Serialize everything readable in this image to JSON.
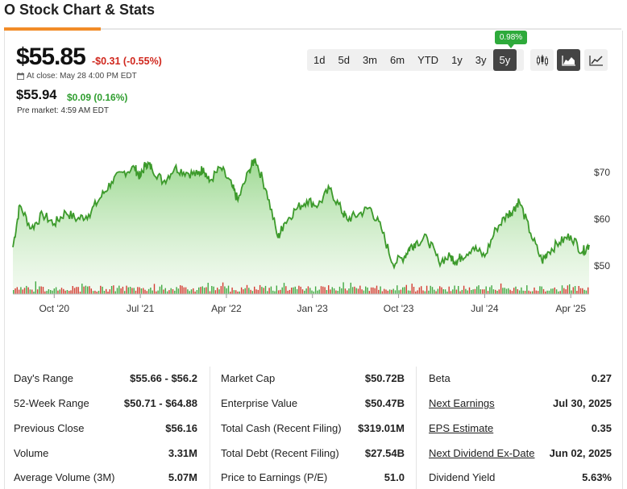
{
  "header": {
    "title": "O Stock Chart & Stats"
  },
  "quote": {
    "price": "$55.85",
    "change": "-$0.31 (-0.55%)",
    "close_label": "At close: May 28 4:00 PM EDT",
    "premarket_price": "$55.94",
    "premarket_change": "$0.09 (0.16%)",
    "premarket_label": "Pre market: 4:59 AM EDT"
  },
  "ranges": {
    "items": [
      "1d",
      "5d",
      "3m",
      "6m",
      "YTD",
      "1y",
      "3y",
      "5y"
    ],
    "active": "5y",
    "tooltip": "0.98%"
  },
  "colors": {
    "up": "#2f9e2f",
    "down": "#d0271d",
    "accent": "#f28c28",
    "line": "#3c9a2b"
  },
  "chart_data": {
    "type": "area",
    "title": "",
    "x_tick_labels": [
      "Oct '20",
      "Jul '21",
      "Apr '22",
      "Jan '23",
      "Oct '23",
      "Jul '24",
      "Apr '25"
    ],
    "y_tick_labels": [
      "$70",
      "$60",
      "$50"
    ],
    "ylim": [
      44,
      75
    ],
    "x": [
      2020.39,
      2020.45,
      2020.55,
      2020.65,
      2020.75,
      2020.85,
      2020.95,
      2021.05,
      2021.15,
      2021.25,
      2021.35,
      2021.45,
      2021.5,
      2021.55,
      2021.6,
      2021.7,
      2021.8,
      2021.9,
      2022.0,
      2022.05,
      2022.1,
      2022.2,
      2022.3,
      2022.35,
      2022.45,
      2022.5,
      2022.6,
      2022.7,
      2022.75,
      2022.85,
      2022.95,
      2023.05,
      2023.15,
      2023.25,
      2023.3,
      2023.4,
      2023.5,
      2023.6,
      2023.7,
      2023.8,
      2023.85,
      2023.9,
      2024.0,
      2024.1,
      2024.2,
      2024.25,
      2024.3,
      2024.4,
      2024.5,
      2024.6,
      2024.7,
      2024.75,
      2024.8,
      2024.9,
      2025.0,
      2025.05,
      2025.15,
      2025.25,
      2025.35,
      2025.41
    ],
    "values": [
      54,
      63,
      58,
      61,
      59,
      61.5,
      60,
      61,
      64.5,
      68,
      70,
      71,
      69,
      72,
      71,
      68,
      71,
      70,
      69.5,
      71,
      68,
      71,
      67,
      64,
      70.5,
      73,
      66,
      56,
      59,
      62,
      64,
      63,
      66.5,
      62,
      60,
      61,
      62.5,
      58,
      50.5,
      52,
      54,
      55,
      56,
      51,
      52,
      51,
      52,
      54,
      52,
      58,
      61,
      62,
      64,
      57,
      51,
      53,
      55,
      56.5,
      53,
      54.5
    ],
    "volume_note": "volume bars shown beneath price area"
  },
  "stats": {
    "col1": [
      {
        "label": "Day's Range",
        "value": "$55.66 - $56.2"
      },
      {
        "label": "52-Week Range",
        "value": "$50.71 - $64.88"
      },
      {
        "label": "Previous Close",
        "value": "$56.16"
      },
      {
        "label": "Volume",
        "value": "3.31M"
      },
      {
        "label": "Average Volume (3M)",
        "value": "5.07M"
      }
    ],
    "col2": [
      {
        "label": "Market Cap",
        "value": "$50.72B"
      },
      {
        "label": "Enterprise Value",
        "value": "$50.47B"
      },
      {
        "label": "Total Cash (Recent Filing)",
        "value": "$319.01M"
      },
      {
        "label": "Total Debt (Recent Filing)",
        "value": "$27.54B"
      },
      {
        "label": "Price to Earnings (P/E)",
        "value": "51.0"
      }
    ],
    "col3": [
      {
        "label": "Beta",
        "value": "0.27"
      },
      {
        "label": "Next Earnings",
        "value": "Jul 30, 2025"
      },
      {
        "label": "EPS Estimate",
        "value": "0.35"
      },
      {
        "label": "Next Dividend Ex-Date",
        "value": "Jun 02, 2025"
      },
      {
        "label": "Dividend Yield",
        "value": "5.63%"
      }
    ]
  }
}
